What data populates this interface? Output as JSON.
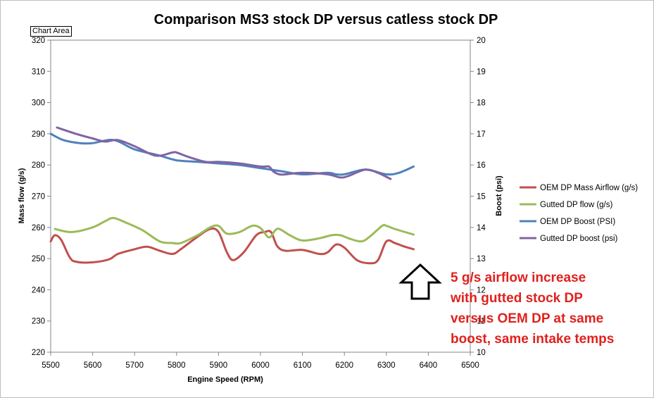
{
  "chart_tag": "Chart Area",
  "chart_data": {
    "type": "line",
    "title": "Comparison MS3 stock DP versus catless stock DP",
    "xlabel": "Engine Speed (RPM)",
    "ylabel": "Mass flow (g/s)",
    "y2label": "Boost (psi)",
    "xlim": [
      5500,
      6500
    ],
    "ylim": [
      220,
      320
    ],
    "y2lim": [
      10,
      20
    ],
    "xticks": [
      5500,
      5600,
      5700,
      5800,
      5900,
      6000,
      6100,
      6200,
      6300,
      6400,
      6500
    ],
    "yticks": [
      220,
      230,
      240,
      250,
      260,
      270,
      280,
      290,
      300,
      310,
      320
    ],
    "y2ticks": [
      10,
      11,
      12,
      13,
      14,
      15,
      16,
      17,
      18,
      19,
      20
    ],
    "series": [
      {
        "name": "OEM DP Mass Airflow (g/s)",
        "axis": "left",
        "color": "#c0504d",
        "x": [
          5500,
          5510,
          5525,
          5545,
          5560,
          5600,
          5640,
          5660,
          5700,
          5730,
          5760,
          5790,
          5810,
          5850,
          5880,
          5900,
          5920,
          5935,
          5960,
          5990,
          6010,
          6025,
          6040,
          6060,
          6100,
          6140,
          6160,
          6180,
          6200,
          6230,
          6260,
          6280,
          6300,
          6320,
          6340,
          6365
        ],
        "values": [
          255.5,
          257.5,
          256,
          250.5,
          249,
          248.8,
          249.8,
          251.5,
          253,
          253.8,
          252.5,
          251.5,
          253,
          257,
          259.5,
          258.5,
          252,
          249.5,
          252,
          257.5,
          258.5,
          258.5,
          254,
          252.5,
          252.8,
          251.5,
          252,
          254.5,
          253.5,
          249.5,
          248.5,
          249.5,
          255.5,
          255,
          254,
          253
        ]
      },
      {
        "name": "Gutted DP flow (g/s)",
        "axis": "left",
        "color": "#9bbb59",
        "x": [
          5510,
          5550,
          5600,
          5630,
          5650,
          5680,
          5720,
          5760,
          5790,
          5810,
          5850,
          5880,
          5900,
          5920,
          5950,
          5980,
          6000,
          6020,
          6035,
          6045,
          6070,
          6100,
          6140,
          6170,
          6190,
          6210,
          6240,
          6260,
          6290,
          6300,
          6320,
          6365
        ],
        "values": [
          259.5,
          258.5,
          260,
          262,
          263,
          261.5,
          259,
          255.5,
          255,
          255,
          257.5,
          260,
          260.5,
          258,
          258.5,
          260.5,
          259.8,
          256.8,
          259,
          259.5,
          257.5,
          255.8,
          256.5,
          257.5,
          257.5,
          256.5,
          255.5,
          257,
          260.5,
          260.5,
          259.5,
          257.7
        ]
      },
      {
        "name": "OEM DP Boost (PSI)",
        "axis": "right",
        "color": "#4f81bd",
        "x": [
          5500,
          5530,
          5570,
          5600,
          5650,
          5700,
          5760,
          5800,
          5850,
          5900,
          5950,
          6000,
          6050,
          6100,
          6160,
          6180,
          6200,
          6250,
          6300,
          6330,
          6365
        ],
        "values": [
          17,
          16.8,
          16.7,
          16.7,
          16.8,
          16.5,
          16.3,
          16.15,
          16.1,
          16.05,
          16.0,
          15.9,
          15.8,
          15.7,
          15.75,
          15.7,
          15.7,
          15.85,
          15.7,
          15.75,
          15.95
        ]
      },
      {
        "name": "Gutted DP boost (psi)",
        "axis": "right",
        "color": "#8064a2",
        "x": [
          5515,
          5560,
          5600,
          5630,
          5660,
          5700,
          5750,
          5790,
          5800,
          5830,
          5870,
          5900,
          5950,
          6000,
          6020,
          6030,
          6045,
          6060,
          6100,
          6160,
          6190,
          6210,
          6250,
          6280,
          6310
        ],
        "values": [
          17.2,
          17.0,
          16.85,
          16.75,
          16.8,
          16.6,
          16.3,
          16.4,
          16.4,
          16.25,
          16.1,
          16.1,
          16.05,
          15.95,
          15.95,
          15.8,
          15.7,
          15.7,
          15.75,
          15.7,
          15.6,
          15.65,
          15.85,
          15.75,
          15.55
        ]
      }
    ],
    "legend": "right",
    "annotation": {
      "lines": [
        "5 g/s airflow increase",
        "with gutted stock DP",
        "versus OEM DP at same",
        "boost, same intake temps"
      ],
      "color": "#e0211d",
      "arrow": "up"
    }
  }
}
